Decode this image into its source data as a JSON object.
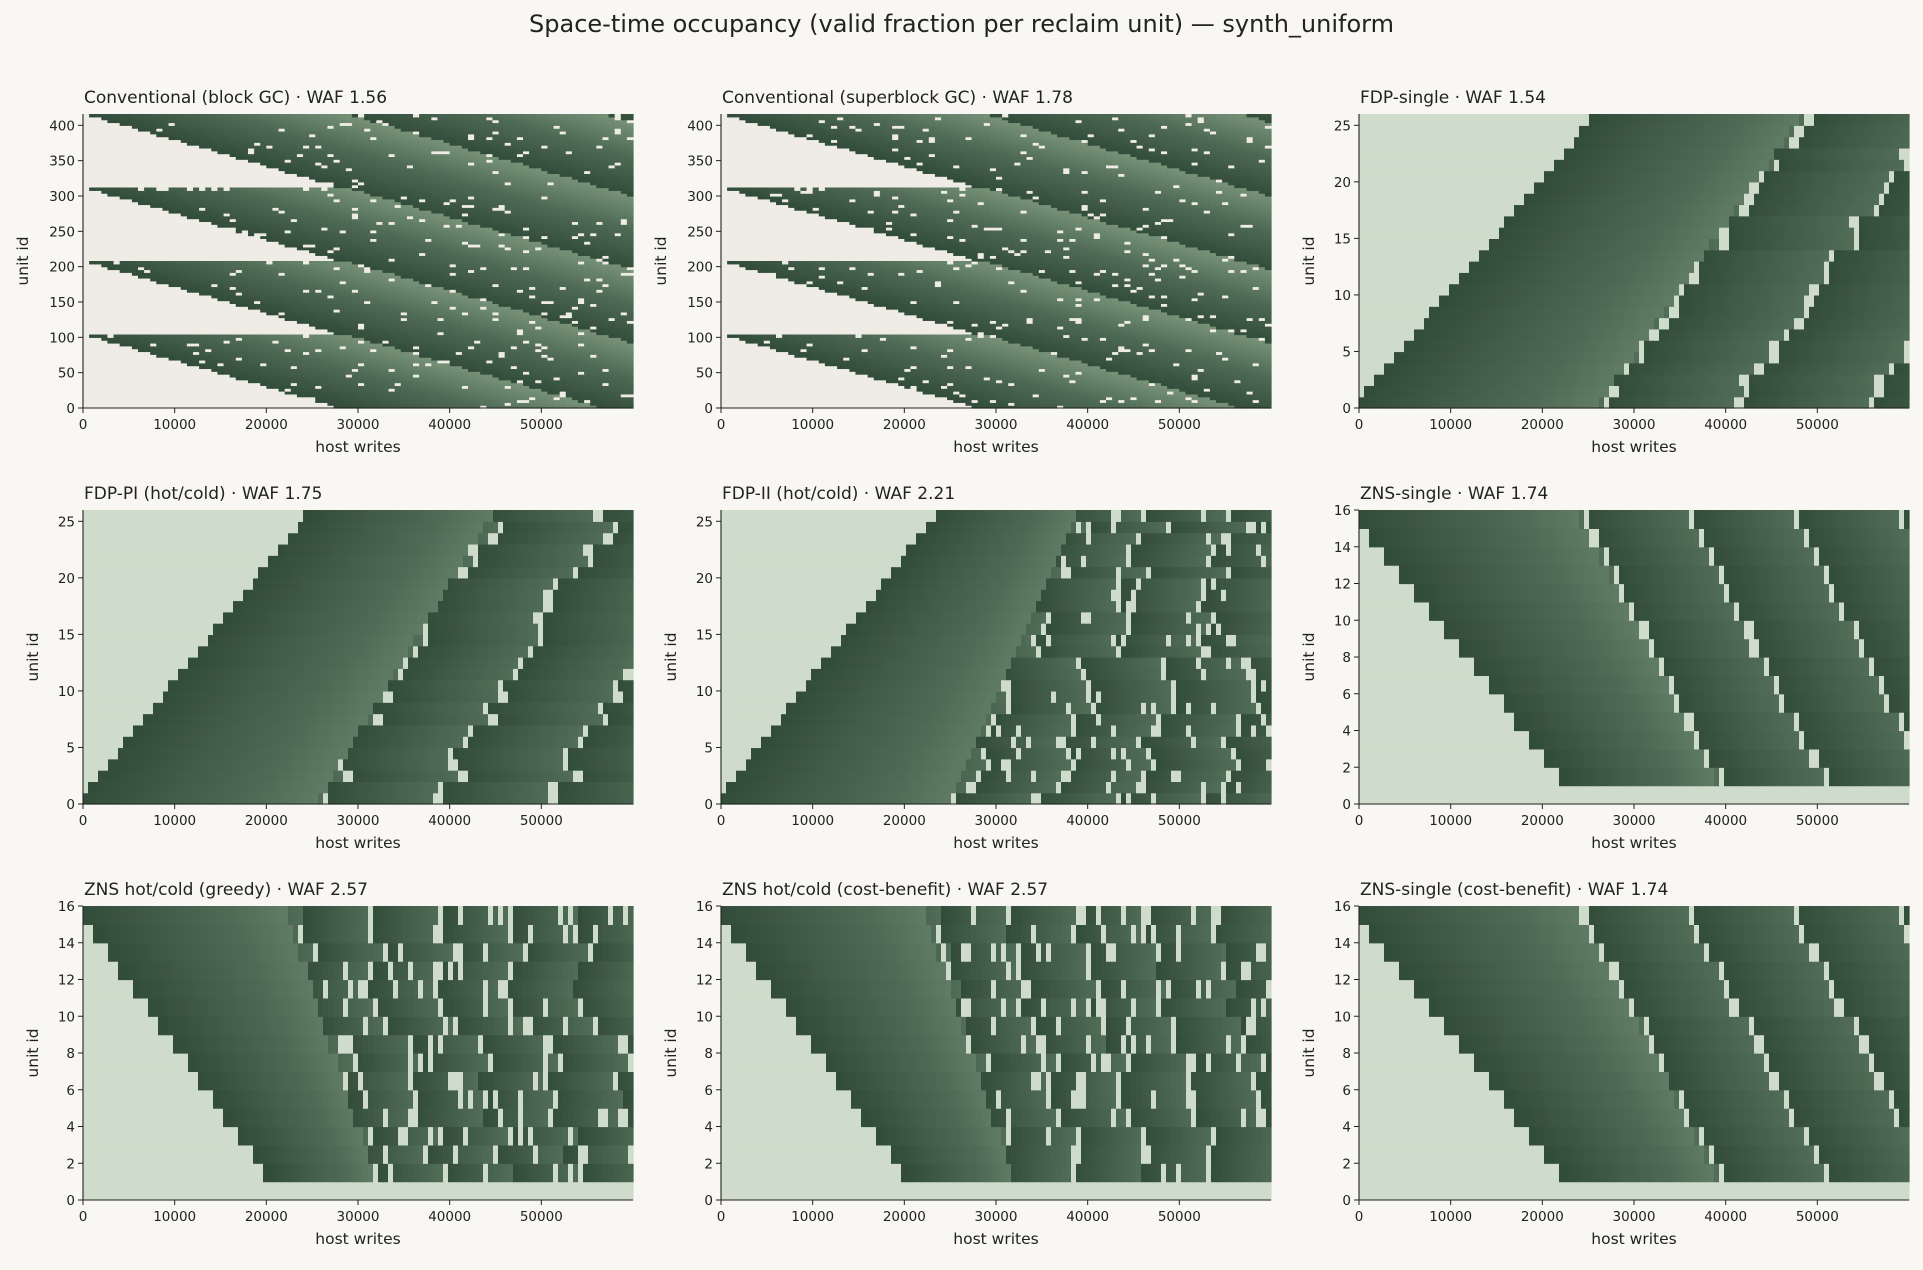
{
  "suptitle": "Space-time occupancy (valid fraction per reclaim unit) — synth_uniform",
  "colors": {
    "background": "#f8f7f3",
    "empty_unit": "#d0dccb",
    "empty_light": "#eeece4",
    "valid_dark": "#334d3b",
    "valid_mid": "#4f6b55",
    "valid_light": "#93ad91"
  },
  "chart_data": [
    {
      "type": "heatmap",
      "title": "Conventional (block GC) · WAF 1.56",
      "xlabel": "host writes",
      "ylabel": "unit id",
      "xlim": [
        0,
        60000
      ],
      "ylim": [
        0,
        416
      ],
      "xticks": [
        0,
        10000,
        20000,
        30000,
        40000,
        50000
      ],
      "yticks": [
        0,
        50,
        100,
        150,
        200,
        250,
        300,
        350,
        400
      ],
      "pattern": "conventional",
      "first_fill_x": 28000,
      "cycle_x": 28000,
      "band_units": 26,
      "waf": 1.56
    },
    {
      "type": "heatmap",
      "title": "Conventional (superblock GC) · WAF 1.78",
      "xlabel": "host writes",
      "ylabel": "unit id",
      "xlim": [
        0,
        60000
      ],
      "ylim": [
        0,
        416
      ],
      "xticks": [
        0,
        10000,
        20000,
        30000,
        40000,
        50000
      ],
      "yticks": [
        0,
        50,
        100,
        150,
        200,
        250,
        300,
        350,
        400
      ],
      "pattern": "conventional",
      "first_fill_x": 28000,
      "cycle_x": 28000,
      "band_units": 26,
      "waf": 1.78
    },
    {
      "type": "heatmap",
      "title": "FDP-single · WAF 1.54",
      "xlabel": "host writes",
      "ylabel": "unit id",
      "xlim": [
        0,
        60000
      ],
      "ylim": [
        0,
        26
      ],
      "xticks": [
        0,
        10000,
        20000,
        30000,
        40000,
        50000
      ],
      "yticks": [
        0,
        5,
        10,
        15,
        20,
        25
      ],
      "pattern": "sequential",
      "units": 26,
      "open_start_x": 0,
      "open_end_x": 25500,
      "first_erase_x": 26000,
      "cycle_x": 14500,
      "noise": 0.15,
      "waf": 1.54
    },
    {
      "type": "heatmap",
      "title": "FDP-PI (hot/cold) · WAF 1.75",
      "xlabel": "host writes",
      "ylabel": "unit id",
      "xlim": [
        0,
        60000
      ],
      "ylim": [
        0,
        26
      ],
      "xticks": [
        0,
        10000,
        20000,
        30000,
        40000,
        50000
      ],
      "yticks": [
        0,
        5,
        10,
        15,
        20,
        25
      ],
      "pattern": "sequential",
      "units": 26,
      "open_start_x": 0,
      "open_end_x": 24500,
      "first_erase_x": 25500,
      "cycle_x": 12500,
      "noise": 0.25,
      "waf": 1.75
    },
    {
      "type": "heatmap",
      "title": "FDP-II (hot/cold) · WAF 2.21",
      "xlabel": "host writes",
      "ylabel": "unit id",
      "xlim": [
        0,
        60000
      ],
      "ylim": [
        0,
        26
      ],
      "xticks": [
        0,
        10000,
        20000,
        30000,
        40000,
        50000
      ],
      "yticks": [
        0,
        5,
        10,
        15,
        20,
        25
      ],
      "pattern": "sequential",
      "units": 26,
      "open_start_x": 0,
      "open_end_x": 23500,
      "first_erase_x": 25000,
      "cycle_x": 9000,
      "noise": 0.45,
      "waf": 2.21
    },
    {
      "type": "heatmap",
      "title": "ZNS-single · WAF 1.74",
      "xlabel": "host writes",
      "ylabel": "unit id",
      "xlim": [
        0,
        60000
      ],
      "ylim": [
        0,
        16
      ],
      "xticks": [
        0,
        10000,
        20000,
        30000,
        40000,
        50000
      ],
      "yticks": [
        0,
        2,
        4,
        6,
        8,
        10,
        12,
        14,
        16
      ],
      "pattern": "zns",
      "units": 16,
      "open_start_x": 0,
      "open_end_x": 23800,
      "first_erase_x": 24000,
      "cycle_x": 11500,
      "noise": 0.08,
      "waf": 1.74
    },
    {
      "type": "heatmap",
      "title": "ZNS hot/cold (greedy) · WAF 2.57",
      "xlabel": "host writes",
      "ylabel": "unit id",
      "xlim": [
        0,
        60000
      ],
      "ylim": [
        0,
        16
      ],
      "xticks": [
        0,
        10000,
        20000,
        30000,
        40000,
        50000
      ],
      "yticks": [
        0,
        2,
        4,
        6,
        8,
        10,
        12,
        14,
        16
      ],
      "pattern": "zns",
      "units": 16,
      "open_start_x": 0,
      "open_end_x": 21500,
      "first_erase_x": 22000,
      "cycle_x": 7500,
      "noise": 0.5,
      "waf": 2.57
    },
    {
      "type": "heatmap",
      "title": "ZNS hot/cold (cost-benefit) · WAF 2.57",
      "xlabel": "host writes",
      "ylabel": "unit id",
      "xlim": [
        0,
        60000
      ],
      "ylim": [
        0,
        16
      ],
      "xticks": [
        0,
        10000,
        20000,
        30000,
        40000,
        50000
      ],
      "yticks": [
        0,
        2,
        4,
        6,
        8,
        10,
        12,
        14,
        16
      ],
      "pattern": "zns",
      "units": 16,
      "open_start_x": 0,
      "open_end_x": 21500,
      "first_erase_x": 22000,
      "cycle_x": 7500,
      "noise": 0.5,
      "waf": 2.57
    },
    {
      "type": "heatmap",
      "title": "ZNS-single (cost-benefit) · WAF 1.74",
      "xlabel": "host writes",
      "ylabel": "unit id",
      "xlim": [
        0,
        60000
      ],
      "ylim": [
        0,
        16
      ],
      "xticks": [
        0,
        10000,
        20000,
        30000,
        40000,
        50000
      ],
      "yticks": [
        0,
        2,
        4,
        6,
        8,
        10,
        12,
        14,
        16
      ],
      "pattern": "zns",
      "units": 16,
      "open_start_x": 0,
      "open_end_x": 23800,
      "first_erase_x": 24000,
      "cycle_x": 11500,
      "noise": 0.08,
      "waf": 1.74
    }
  ]
}
